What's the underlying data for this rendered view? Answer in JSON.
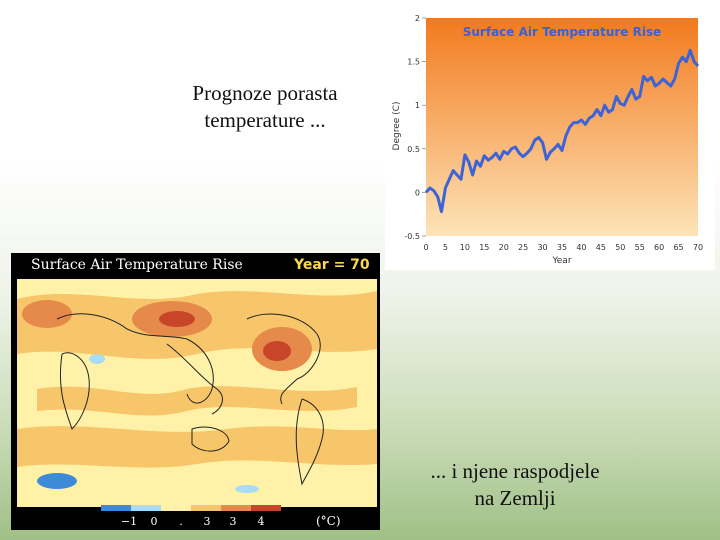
{
  "slide": {
    "title_lines": [
      "Prognoze porasta",
      "temperature ..."
    ],
    "caption_lines": [
      "... i njene raspodjele",
      "na Zemlji"
    ]
  },
  "chart_data": [
    {
      "type": "line",
      "title": "Surface Air Temperature Rise",
      "xlabel": "Year",
      "ylabel": "Degree (C)",
      "xlim": [
        0,
        70
      ],
      "ylim": [
        -0.5,
        2
      ],
      "xticks": [
        0,
        5,
        10,
        15,
        20,
        25,
        30,
        35,
        40,
        45,
        50,
        55,
        60,
        65,
        70
      ],
      "yticks": [
        -0.5,
        0,
        0.5,
        1,
        1.5,
        2
      ],
      "grid": false,
      "colors": {
        "line": "#3d63d6",
        "background_top": "#f27a1e",
        "background_bottom": "#fde4b8",
        "title": "#3d5fd0"
      },
      "series": [
        {
          "x": [
            0,
            1,
            2,
            3,
            4,
            5,
            6,
            7,
            8,
            9,
            10,
            11,
            12,
            13,
            14,
            15,
            16,
            17,
            18,
            19,
            20,
            21,
            22,
            23,
            24,
            25,
            26,
            27,
            28,
            29,
            30,
            31,
            32,
            33,
            34,
            35,
            36,
            37,
            38,
            39,
            40,
            41,
            42,
            43,
            44,
            45,
            46,
            47,
            48,
            49,
            50,
            51,
            52,
            53,
            54,
            55,
            56,
            57,
            58,
            59,
            60,
            61,
            62,
            63,
            64,
            65,
            66,
            67,
            68,
            69,
            70
          ],
          "y": [
            0.0,
            0.05,
            0.02,
            -0.05,
            -0.22,
            0.05,
            0.15,
            0.25,
            0.2,
            0.15,
            0.43,
            0.35,
            0.2,
            0.36,
            0.3,
            0.42,
            0.37,
            0.4,
            0.45,
            0.38,
            0.47,
            0.44,
            0.5,
            0.52,
            0.45,
            0.41,
            0.45,
            0.5,
            0.6,
            0.63,
            0.57,
            0.38,
            0.46,
            0.5,
            0.55,
            0.48,
            0.65,
            0.75,
            0.8,
            0.8,
            0.83,
            0.78,
            0.85,
            0.88,
            0.95,
            0.88,
            1.0,
            0.92,
            0.95,
            1.1,
            1.02,
            1.0,
            1.1,
            1.18,
            1.07,
            1.1,
            1.33,
            1.28,
            1.32,
            1.22,
            1.25,
            1.3,
            1.26,
            1.22,
            1.3,
            1.48,
            1.55,
            1.5,
            1.63,
            1.5,
            1.45
          ]
        }
      ]
    },
    {
      "type": "heatmap",
      "title": "Surface Air Temperature Rise",
      "annotation": "Year = 70",
      "legend_unit": "(°C)",
      "legend_ticks": [
        "−1",
        "0",
        ".",
        "3",
        "3",
        "4"
      ],
      "colors": {
        "cold_deep": "#3c8ad8",
        "cold": "#a8dcf2",
        "neutral": "#fff2a8",
        "warm": "#f7c56a",
        "hot": "#e58a4a",
        "hottest": "#c9452a",
        "continent": "#222222"
      }
    }
  ]
}
